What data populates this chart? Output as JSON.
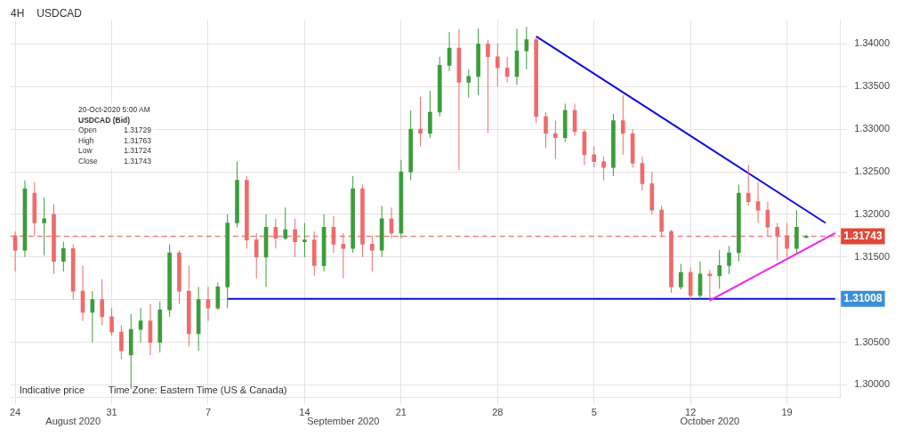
{
  "chart_data": {
    "type": "candlestick",
    "title": "USDCAD",
    "subtitle": "4H",
    "categories": [
      "24",
      null,
      null,
      null,
      null,
      null,
      null,
      null,
      null,
      null,
      "31",
      null,
      null,
      null,
      null,
      null,
      null,
      null,
      null,
      null,
      "7",
      null,
      null,
      null,
      null,
      null,
      null,
      null,
      null,
      null,
      "14",
      null,
      null,
      null,
      null,
      null,
      null,
      null,
      null,
      null,
      "21",
      null,
      null,
      null,
      null,
      null,
      null,
      null,
      null,
      null,
      "28",
      null,
      null,
      null,
      null,
      null,
      null,
      null,
      null,
      null,
      "5",
      null,
      null,
      null,
      null,
      null,
      null,
      null,
      null,
      null,
      "12",
      null,
      null,
      null,
      null,
      null,
      null,
      null,
      null,
      null,
      "19",
      null,
      null,
      null,
      null,
      null
    ],
    "ohlc": [
      [
        1.3175,
        1.318,
        1.3133,
        1.3158
      ],
      [
        1.3158,
        1.324,
        1.315,
        1.323
      ],
      [
        1.3225,
        1.3238,
        1.3175,
        1.319
      ],
      [
        1.319,
        1.322,
        1.3152,
        1.3195
      ],
      [
        1.32,
        1.3212,
        1.313,
        1.3145
      ],
      [
        1.3145,
        1.3168,
        1.3133,
        1.316
      ],
      [
        1.316,
        1.3165,
        1.31,
        1.311
      ],
      [
        1.311,
        1.314,
        1.3075,
        1.3085
      ],
      [
        1.3085,
        1.311,
        1.305,
        1.31
      ],
      [
        1.31,
        1.3124,
        1.307,
        1.308
      ],
      [
        1.308,
        1.309,
        1.3058,
        1.3062
      ],
      [
        1.3062,
        1.307,
        1.303,
        1.304
      ],
      [
        1.3035,
        1.3083,
        1.2995,
        1.3065
      ],
      [
        1.3065,
        1.309,
        1.305,
        1.3075
      ],
      [
        1.3075,
        1.3095,
        1.3035,
        1.305
      ],
      [
        1.305,
        1.3098,
        1.3038,
        1.3088
      ],
      [
        1.3088,
        1.3165,
        1.308,
        1.3155
      ],
      [
        1.3155,
        1.3158,
        1.3095,
        1.311
      ],
      [
        1.311,
        1.314,
        1.3045,
        1.306
      ],
      [
        1.306,
        1.3115,
        1.304,
        1.31
      ],
      [
        1.31,
        1.3115,
        1.3075,
        1.309
      ],
      [
        1.309,
        1.312,
        1.3088,
        1.3115
      ],
      [
        1.3115,
        1.32,
        1.309,
        1.319
      ],
      [
        1.319,
        1.3262,
        1.3185,
        1.324
      ],
      [
        1.324,
        1.3245,
        1.316,
        1.317
      ],
      [
        1.317,
        1.3178,
        1.3125,
        1.315
      ],
      [
        1.315,
        1.32,
        1.3115,
        1.3185
      ],
      [
        1.3185,
        1.3195,
        1.316,
        1.3172
      ],
      [
        1.3172,
        1.3208,
        1.317,
        1.3182
      ],
      [
        1.3182,
        1.3195,
        1.315,
        1.3168
      ],
      [
        1.3168,
        1.319,
        1.315,
        1.317
      ],
      [
        1.317,
        1.318,
        1.3128,
        1.314
      ],
      [
        1.314,
        1.32,
        1.3133,
        1.3185
      ],
      [
        1.3185,
        1.3198,
        1.3155,
        1.3165
      ],
      [
        1.3165,
        1.3178,
        1.3125,
        1.316
      ],
      [
        1.316,
        1.3245,
        1.3155,
        1.323
      ],
      [
        1.323,
        1.3235,
        1.315,
        1.3165
      ],
      [
        1.3165,
        1.3175,
        1.3133,
        1.3158
      ],
      [
        1.3158,
        1.321,
        1.315,
        1.3195
      ],
      [
        1.3195,
        1.3208,
        1.3172,
        1.3178
      ],
      [
        1.3178,
        1.3264,
        1.3172,
        1.325
      ],
      [
        1.325,
        1.3322,
        1.324,
        1.33
      ],
      [
        1.33,
        1.3338,
        1.328,
        1.3295
      ],
      [
        1.3295,
        1.3345,
        1.329,
        1.332
      ],
      [
        1.332,
        1.3385,
        1.3315,
        1.3375
      ],
      [
        1.3375,
        1.3414,
        1.3368,
        1.3395
      ],
      [
        1.3395,
        1.3418,
        1.3252,
        1.3355
      ],
      [
        1.3355,
        1.337,
        1.3337,
        1.3362
      ],
      [
        1.3362,
        1.3418,
        1.334,
        1.34
      ],
      [
        1.34,
        1.3405,
        1.3296,
        1.3385
      ],
      [
        1.3385,
        1.34,
        1.335,
        1.3372
      ],
      [
        1.3372,
        1.3385,
        1.3355,
        1.3362
      ],
      [
        1.3362,
        1.3418,
        1.3352,
        1.3392
      ],
      [
        1.3392,
        1.342,
        1.337,
        1.3405
      ],
      [
        1.3405,
        1.3408,
        1.3307,
        1.3315
      ],
      [
        1.3315,
        1.332,
        1.3278,
        1.3295
      ],
      [
        1.3295,
        1.331,
        1.3265,
        1.329
      ],
      [
        1.329,
        1.333,
        1.3285,
        1.3322
      ],
      [
        1.3322,
        1.333,
        1.3292,
        1.3297
      ],
      [
        1.3297,
        1.33,
        1.3258,
        1.327
      ],
      [
        1.327,
        1.328,
        1.3255,
        1.3262
      ],
      [
        1.3262,
        1.3268,
        1.324,
        1.3255
      ],
      [
        1.3255,
        1.3318,
        1.3245,
        1.331
      ],
      [
        1.331,
        1.334,
        1.327,
        1.3295
      ],
      [
        1.3295,
        1.33,
        1.3255,
        1.326
      ],
      [
        1.326,
        1.3268,
        1.3228,
        1.3236
      ],
      [
        1.3236,
        1.325,
        1.32,
        1.3205
      ],
      [
        1.3205,
        1.321,
        1.3175,
        1.318
      ],
      [
        1.318,
        1.3182,
        1.3108,
        1.3115
      ],
      [
        1.3115,
        1.3142,
        1.3112,
        1.3132
      ],
      [
        1.3132,
        1.3138,
        1.31,
        1.3105
      ],
      [
        1.3105,
        1.3145,
        1.3101,
        1.313
      ],
      [
        1.313,
        1.3135,
        1.3098,
        1.3128
      ],
      [
        1.3128,
        1.3158,
        1.3113,
        1.314
      ],
      [
        1.314,
        1.3163,
        1.313,
        1.3155
      ],
      [
        1.3155,
        1.3235,
        1.3145,
        1.3225
      ],
      [
        1.3225,
        1.3258,
        1.321,
        1.3215
      ],
      [
        1.3215,
        1.3238,
        1.319,
        1.3205
      ],
      [
        1.3205,
        1.3215,
        1.3175,
        1.3185
      ],
      [
        1.3185,
        1.319,
        1.3146,
        1.3175
      ],
      [
        1.3175,
        1.319,
        1.315,
        1.316
      ],
      [
        1.316,
        1.3205,
        1.3155,
        1.3185
      ],
      [
        1.31729,
        1.31763,
        1.31724,
        1.31743
      ],
      null,
      null,
      null
    ],
    "colors": [
      "#f06b6b",
      "#3c9d3c",
      "#f06b6b",
      "#3c9d3c",
      "#f06b6b",
      "#3c9d3c",
      "#f06b6b",
      "#f06b6b",
      "#3c9d3c",
      "#f06b6b",
      "#f06b6b",
      "#f06b6b",
      "#3c9d3c",
      "#3c9d3c",
      "#f06b6b",
      "#3c9d3c",
      "#3c9d3c",
      "#f06b6b",
      "#f06b6b",
      "#3c9d3c",
      "#f06b6b",
      "#3c9d3c",
      "#3c9d3c",
      "#3c9d3c",
      "#f06b6b",
      "#f06b6b",
      "#3c9d3c",
      "#f06b6b",
      "#3c9d3c",
      "#f06b6b",
      "#3c9d3c",
      "#f06b6b",
      "#3c9d3c",
      "#f06b6b",
      "#f06b6b",
      "#3c9d3c",
      "#f06b6b",
      "#f06b6b",
      "#3c9d3c",
      "#f06b6b",
      "#3c9d3c",
      "#3c9d3c",
      "#f06b6b",
      "#3c9d3c",
      "#3c9d3c",
      "#3c9d3c",
      "#f06b6b",
      "#3c9d3c",
      "#3c9d3c",
      "#f06b6b",
      "#f06b6b",
      "#f06b6b",
      "#3c9d3c",
      "#3c9d3c",
      "#f06b6b",
      "#f06b6b",
      "#f06b6b",
      "#3c9d3c",
      "#f06b6b",
      "#f06b6b",
      "#f06b6b",
      "#f06b6b",
      "#3c9d3c",
      "#f06b6b",
      "#f06b6b",
      "#f06b6b",
      "#f06b6b",
      "#f06b6b",
      "#f06b6b",
      "#3c9d3c",
      "#f06b6b",
      "#3c9d3c",
      "#f06b6b",
      "#3c9d3c",
      "#3c9d3c",
      "#3c9d3c",
      "#f06b6b",
      "#f06b6b",
      "#f06b6b",
      "#f06b6b",
      "#f06b6b",
      "#3c9d3c",
      "#3c9d3c",
      null,
      null,
      null
    ],
    "series": [
      {
        "type": "line",
        "color": "#1010e0",
        "values": [
          null,
          null,
          null,
          null,
          null,
          null,
          null,
          null,
          null,
          null,
          null,
          null,
          null,
          null,
          null,
          null,
          null,
          null,
          null,
          null,
          null,
          null,
          null,
          null,
          null,
          null,
          null,
          null,
          null,
          null,
          null,
          null,
          null,
          null,
          null,
          null,
          null,
          null,
          null,
          null,
          null,
          null,
          null,
          null,
          null,
          null,
          null,
          null,
          null,
          null,
          null,
          null,
          null,
          null,
          1.3409,
          null,
          null,
          null,
          null,
          null,
          null,
          null,
          null,
          null,
          null,
          null,
          null,
          null,
          null,
          null,
          null,
          null,
          null,
          null,
          null,
          null,
          null,
          null,
          null,
          null,
          null,
          null,
          null,
          null,
          1.319,
          null
        ]
      },
      {
        "type": "line",
        "color": "#ee22ee",
        "values": [
          null,
          null,
          null,
          null,
          null,
          null,
          null,
          null,
          null,
          null,
          null,
          null,
          null,
          null,
          null,
          null,
          null,
          null,
          null,
          null,
          null,
          null,
          null,
          null,
          null,
          null,
          null,
          null,
          null,
          null,
          null,
          null,
          null,
          null,
          null,
          null,
          null,
          null,
          null,
          null,
          null,
          null,
          null,
          null,
          null,
          null,
          null,
          null,
          null,
          null,
          null,
          null,
          null,
          null,
          null,
          null,
          null,
          null,
          null,
          null,
          null,
          null,
          null,
          null,
          null,
          null,
          null,
          null,
          null,
          null,
          null,
          null,
          1.3099,
          null,
          null,
          null,
          null,
          null,
          null,
          null,
          null,
          null,
          null,
          null,
          null,
          1.3178
        ]
      },
      {
        "type": "line",
        "color": "#1010e0",
        "values": [
          null,
          null,
          null,
          null,
          null,
          null,
          null,
          null,
          null,
          null,
          null,
          null,
          null,
          null,
          null,
          null,
          null,
          null,
          null,
          null,
          null,
          null,
          1.3101,
          null,
          null,
          null,
          null,
          null,
          null,
          null,
          null,
          null,
          null,
          null,
          null,
          null,
          null,
          null,
          null,
          null,
          null,
          null,
          null,
          null,
          null,
          null,
          null,
          null,
          null,
          null,
          null,
          null,
          null,
          null,
          null,
          null,
          null,
          null,
          null,
          null,
          null,
          null,
          null,
          null,
          null,
          null,
          null,
          null,
          null,
          null,
          null,
          null,
          null,
          null,
          null,
          null,
          null,
          null,
          null,
          null,
          null,
          null,
          null,
          null,
          null,
          1.3101
        ]
      }
    ],
    "ylim": [
      1.2985,
      1.3428
    ],
    "yticks": [
      {
        "value": 1.3,
        "label": "1.30000"
      },
      {
        "value": 1.305,
        "label": "1.30500"
      },
      {
        "value": 1.31,
        "label": null
      },
      {
        "value": 1.315,
        "label": "1.31500"
      },
      {
        "value": 1.32,
        "label": "1.32000"
      },
      {
        "value": 1.325,
        "label": "1.32500"
      },
      {
        "value": 1.33,
        "label": "1.33000"
      },
      {
        "value": 1.335,
        "label": "1.33500"
      },
      {
        "value": 1.34,
        "label": "1.34000"
      }
    ],
    "ref_lines": [
      {
        "axis": "y",
        "value": 1.31743,
        "label": "1.31743",
        "color": "#f08080",
        "line_style": "dashed"
      }
    ],
    "annotations": [
      "20-Oct-2020 5:00 AM",
      "USDCAD (Bid)",
      "Open",
      "1.31729",
      "High",
      "1.31763",
      "Low",
      "1.31724",
      "Close",
      "1.31743",
      "Indicative price",
      "Time Zone: Eastern Time (US & Canada)",
      "August 2020",
      "September 2020",
      "October 2020",
      "1.31008"
    ],
    "grid": true,
    "legend": false
  }
}
